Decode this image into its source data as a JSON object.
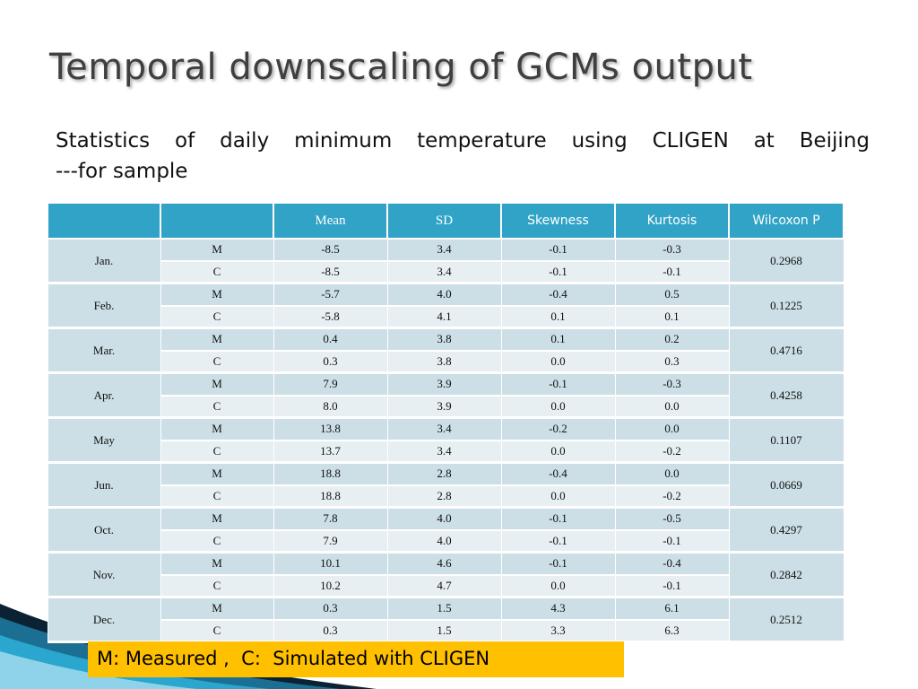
{
  "slide": {
    "title": "Temporal downscaling of GCMs output",
    "subtitle_line1": "Statistics of daily minimum temperature using CLIGEN at Beijing",
    "subtitle_line2": "---for sample",
    "legend": "M: Measured ,  C:  Simulated with CLIGEN",
    "colors": {
      "header": "#31a3c6",
      "row_measured": "#ccdfe6",
      "row_simulated": "#e7eff2",
      "legend_bg": "#ffc000",
      "deco_dark": "#0a2233",
      "deco_blue": "#1b8fb8"
    }
  },
  "table": {
    "columns": [
      "",
      "",
      "Mean",
      "SD",
      "Skewness",
      "Kurtosis",
      "Wilcoxon P"
    ],
    "rows": [
      {
        "month": "Jan.",
        "wilcoxon_p": "0.2968",
        "m": {
          "label": "M",
          "mean": "-8.5",
          "sd": "3.4",
          "skewness": "-0.1",
          "kurtosis": "-0.3"
        },
        "c": {
          "label": "C",
          "mean": "-8.5",
          "sd": "3.4",
          "skewness": "-0.1",
          "kurtosis": "-0.1"
        }
      },
      {
        "month": "Feb.",
        "wilcoxon_p": "0.1225",
        "m": {
          "label": "M",
          "mean": "-5.7",
          "sd": "4.0",
          "skewness": "-0.4",
          "kurtosis": "0.5"
        },
        "c": {
          "label": "C",
          "mean": "-5.8",
          "sd": "4.1",
          "skewness": "0.1",
          "kurtosis": "0.1"
        }
      },
      {
        "month": "Mar.",
        "wilcoxon_p": "0.4716",
        "m": {
          "label": "M",
          "mean": "0.4",
          "sd": "3.8",
          "skewness": "0.1",
          "kurtosis": "0.2"
        },
        "c": {
          "label": "C",
          "mean": "0.3",
          "sd": "3.8",
          "skewness": "0.0",
          "kurtosis": "0.3"
        }
      },
      {
        "month": "Apr.",
        "wilcoxon_p": "0.4258",
        "m": {
          "label": "M",
          "mean": "7.9",
          "sd": "3.9",
          "skewness": "-0.1",
          "kurtosis": "-0.3"
        },
        "c": {
          "label": "C",
          "mean": "8.0",
          "sd": "3.9",
          "skewness": "0.0",
          "kurtosis": "0.0"
        }
      },
      {
        "month": "May",
        "wilcoxon_p": "0.1107",
        "m": {
          "label": "M",
          "mean": "13.8",
          "sd": "3.4",
          "skewness": "-0.2",
          "kurtosis": "0.0"
        },
        "c": {
          "label": "C",
          "mean": "13.7",
          "sd": "3.4",
          "skewness": "0.0",
          "kurtosis": "-0.2"
        }
      },
      {
        "month": "Jun.",
        "wilcoxon_p": "0.0669",
        "m": {
          "label": "M",
          "mean": "18.8",
          "sd": "2.8",
          "skewness": "-0.4",
          "kurtosis": "0.0"
        },
        "c": {
          "label": "C",
          "mean": "18.8",
          "sd": "2.8",
          "skewness": "0.0",
          "kurtosis": "-0.2"
        }
      },
      {
        "month": "Oct.",
        "wilcoxon_p": "0.4297",
        "m": {
          "label": "M",
          "mean": "7.8",
          "sd": "4.0",
          "skewness": "-0.1",
          "kurtosis": "-0.5"
        },
        "c": {
          "label": "C",
          "mean": "7.9",
          "sd": "4.0",
          "skewness": "-0.1",
          "kurtosis": "-0.1"
        }
      },
      {
        "month": "Nov.",
        "wilcoxon_p": "0.2842",
        "m": {
          "label": "M",
          "mean": "10.1",
          "sd": "4.6",
          "skewness": "-0.1",
          "kurtosis": "-0.4"
        },
        "c": {
          "label": "C",
          "mean": "10.2",
          "sd": "4.7",
          "skewness": "0.0",
          "kurtosis": "-0.1"
        }
      },
      {
        "month": "Dec.",
        "wilcoxon_p": "0.2512",
        "m": {
          "label": "M",
          "mean": "0.3",
          "sd": "1.5",
          "skewness": "4.3",
          "kurtosis": "6.1"
        },
        "c": {
          "label": "C",
          "mean": "0.3",
          "sd": "1.5",
          "skewness": "3.3",
          "kurtosis": "6.3"
        }
      }
    ]
  }
}
